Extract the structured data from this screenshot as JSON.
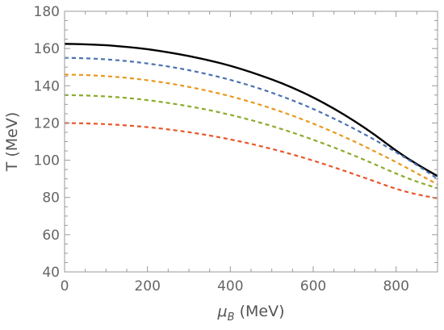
{
  "chart_data": {
    "type": "line",
    "xlabel_symbol": "μ",
    "xlabel_subscript": "B",
    "xlabel_unit": " (MeV)",
    "ylabel": "T (MeV)",
    "xlim": [
      0,
      900
    ],
    "ylim": [
      40,
      180
    ],
    "x_ticks": [
      0,
      200,
      400,
      600,
      800
    ],
    "y_ticks": [
      40,
      60,
      80,
      100,
      120,
      140,
      160,
      180
    ],
    "grid": false,
    "legend": "none",
    "series": [
      {
        "color": "#000000",
        "dash": "solid",
        "x": [
          0,
          50,
          100,
          150,
          200,
          250,
          300,
          350,
          400,
          450,
          500,
          550,
          600,
          650,
          700,
          750,
          800,
          850,
          900
        ],
        "y": [
          162.5,
          162.3,
          161.8,
          160.9,
          159.7,
          158.0,
          156.0,
          153.6,
          150.8,
          147.3,
          143.5,
          139.0,
          133.8,
          127.8,
          121.0,
          113.5,
          105.0,
          97.8,
          91.5
        ]
      },
      {
        "color": "#4a72b0",
        "dash": "dashed",
        "x": [
          0,
          50,
          100,
          150,
          200,
          250,
          300,
          350,
          400,
          450,
          500,
          550,
          600,
          650,
          700,
          750,
          800,
          850,
          900
        ],
        "y": [
          155.0,
          154.8,
          154.2,
          153.3,
          152.0,
          150.4,
          148.4,
          146.0,
          143.2,
          140.0,
          136.3,
          132.2,
          127.6,
          122.4,
          116.8,
          110.8,
          104.3,
          97.5,
          90.0
        ]
      },
      {
        "color": "#e8991e",
        "dash": "dashed",
        "x": [
          0,
          50,
          100,
          150,
          200,
          250,
          300,
          350,
          400,
          450,
          500,
          550,
          600,
          650,
          700,
          750,
          800,
          850,
          900
        ],
        "y": [
          146.0,
          145.8,
          145.2,
          144.3,
          143.0,
          141.4,
          139.4,
          137.1,
          134.4,
          131.3,
          127.8,
          124.0,
          119.7,
          115.0,
          110.0,
          104.6,
          99.0,
          93.0,
          87.0
        ]
      },
      {
        "color": "#8bab2b",
        "dash": "dashed",
        "x": [
          0,
          50,
          100,
          150,
          200,
          250,
          300,
          350,
          400,
          450,
          500,
          550,
          600,
          650,
          700,
          750,
          800,
          850,
          900
        ],
        "y": [
          135.0,
          134.8,
          134.3,
          133.5,
          132.3,
          130.8,
          129.0,
          126.9,
          124.4,
          121.6,
          118.4,
          114.9,
          111.0,
          106.9,
          102.4,
          97.7,
          92.8,
          88.4,
          85.0
        ]
      },
      {
        "color": "#e8572a",
        "dash": "dashed",
        "x": [
          0,
          50,
          100,
          150,
          200,
          250,
          300,
          350,
          400,
          450,
          500,
          550,
          600,
          650,
          700,
          750,
          800,
          850,
          900
        ],
        "y": [
          120.0,
          119.8,
          119.4,
          118.7,
          117.8,
          116.6,
          115.1,
          113.3,
          111.2,
          108.8,
          106.1,
          103.1,
          99.8,
          96.2,
          92.4,
          88.5,
          84.5,
          81.6,
          79.5
        ]
      }
    ]
  }
}
